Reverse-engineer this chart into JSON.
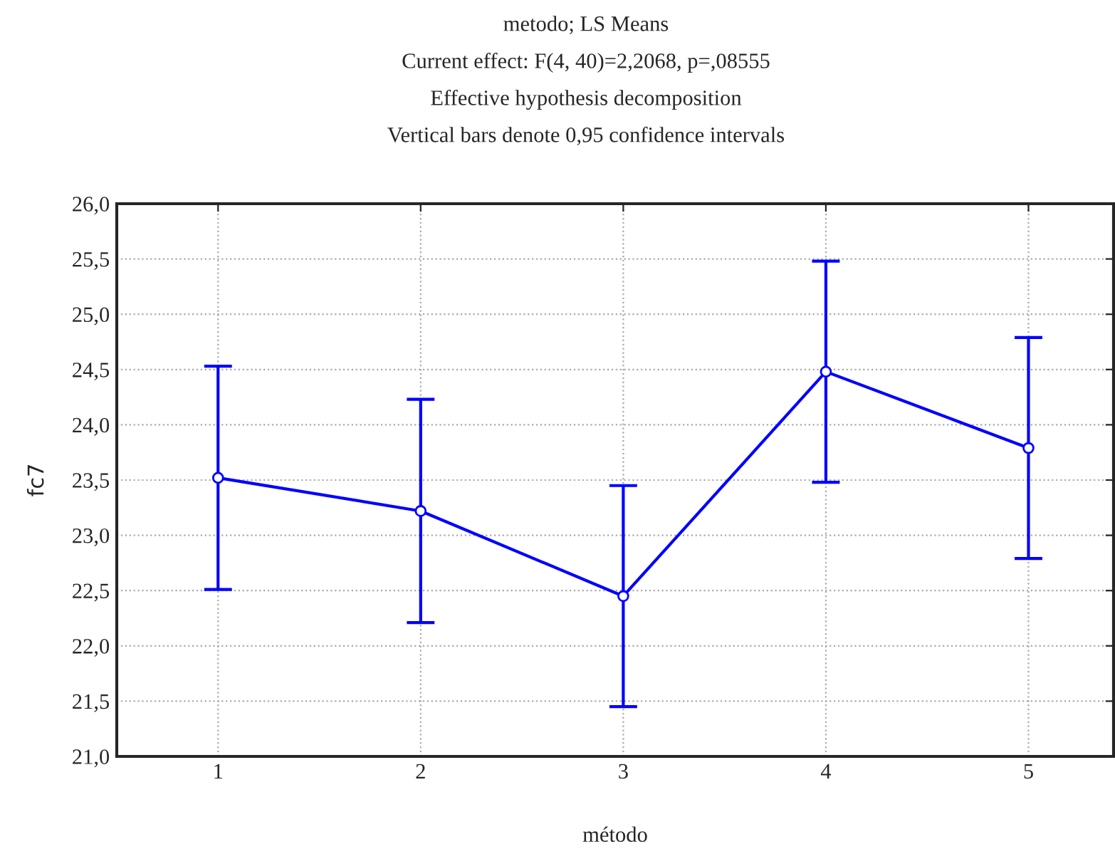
{
  "chart_data": {
    "type": "line",
    "title": "metodo; LS Means",
    "subtitle": "Current effect: F(4, 40)=2,2068, p=,08555",
    "annotations": [
      "Effective hypothesis decomposition",
      "Vertical bars denote 0,95 confidence intervals"
    ],
    "xlabel": "método",
    "ylabel": "fc7",
    "categories": [
      "1",
      "2",
      "3",
      "4",
      "5"
    ],
    "series": [
      {
        "color": "#0000ff",
        "values": [
          23.52,
          23.22,
          22.45,
          24.48,
          23.79
        ],
        "errors": [
          1.01,
          1.01,
          1.0,
          1.0,
          1.0
        ]
      }
    ],
    "ylim": [
      21,
      26
    ],
    "yticks": [
      {
        "value": 21,
        "label": "21,0"
      },
      {
        "value": 21.5,
        "label": "21,5"
      },
      {
        "value": 22,
        "label": "22,0"
      },
      {
        "value": 22.5,
        "label": "22,5"
      },
      {
        "value": 23,
        "label": "23,0"
      },
      {
        "value": 23.5,
        "label": "23,5"
      },
      {
        "value": 24,
        "label": "24,0"
      },
      {
        "value": 24.5,
        "label": "24,5"
      },
      {
        "value": 25,
        "label": "25,0"
      },
      {
        "value": 25.5,
        "label": "25,5"
      },
      {
        "value": 26,
        "label": "26,0"
      }
    ],
    "grid": true,
    "marker": "circle",
    "line_style": "solid"
  }
}
